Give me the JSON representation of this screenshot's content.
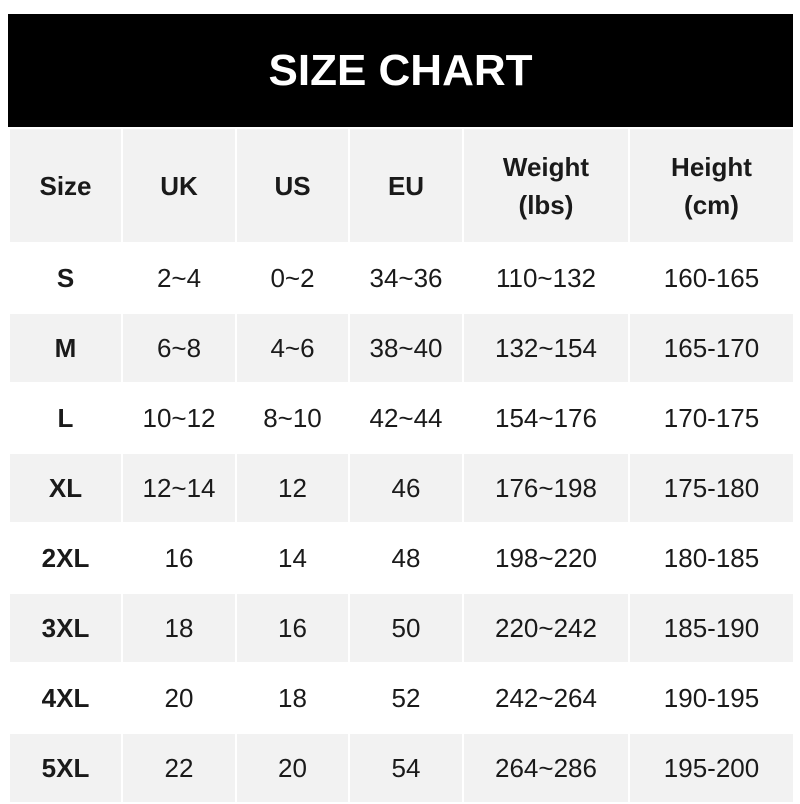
{
  "title": "SIZE CHART",
  "headers": [
    "Size",
    "UK",
    "US",
    "EU",
    "Weight\n(lbs)",
    "Height\n(cm)"
  ],
  "header_lines": [
    [
      "Size"
    ],
    [
      "UK"
    ],
    [
      "US"
    ],
    [
      "EU"
    ],
    [
      "Weight",
      "(lbs)"
    ],
    [
      "Height",
      "(cm)"
    ]
  ],
  "rows": [
    [
      "S",
      "2~4",
      "0~2",
      "34~36",
      "110~132",
      "160-165"
    ],
    [
      "M",
      "6~8",
      "4~6",
      "38~40",
      "132~154",
      "165-170"
    ],
    [
      "L",
      "10~12",
      "8~10",
      "42~44",
      "154~176",
      "170-175"
    ],
    [
      "XL",
      "12~14",
      "12",
      "46",
      "176~198",
      "175-180"
    ],
    [
      "2XL",
      "16",
      "14",
      "48",
      "198~220",
      "180-185"
    ],
    [
      "3XL",
      "18",
      "16",
      "50",
      "220~242",
      "185-190"
    ],
    [
      "4XL",
      "20",
      "18",
      "52",
      "242~264",
      "190-195"
    ],
    [
      "5XL",
      "22",
      "20",
      "54",
      "264~286",
      "195-200"
    ]
  ],
  "colors": {
    "title_bg": "#000000",
    "stripe": "#f2f2f2"
  }
}
